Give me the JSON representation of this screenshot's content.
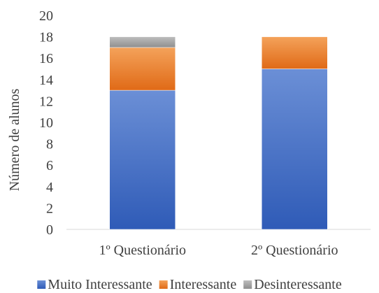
{
  "chart_data": {
    "type": "bar",
    "stacked": true,
    "categories": [
      "1º Questionário",
      "2º Questionário"
    ],
    "series": [
      {
        "name": "Muito Interessante",
        "values": [
          13,
          15
        ],
        "color": "#4472C4"
      },
      {
        "name": "Interessante",
        "values": [
          4,
          3
        ],
        "color": "#ED7D31"
      },
      {
        "name": "Desinteressante",
        "values": [
          1,
          0
        ],
        "color": "#A5A5A5"
      }
    ],
    "title": "",
    "xlabel": "",
    "ylabel": "Número de alunos",
    "ylim": [
      0,
      20
    ],
    "yticks": [
      0,
      2,
      4,
      6,
      8,
      10,
      12,
      14,
      16,
      18,
      20
    ],
    "grid": false,
    "legend_position": "bottom"
  }
}
